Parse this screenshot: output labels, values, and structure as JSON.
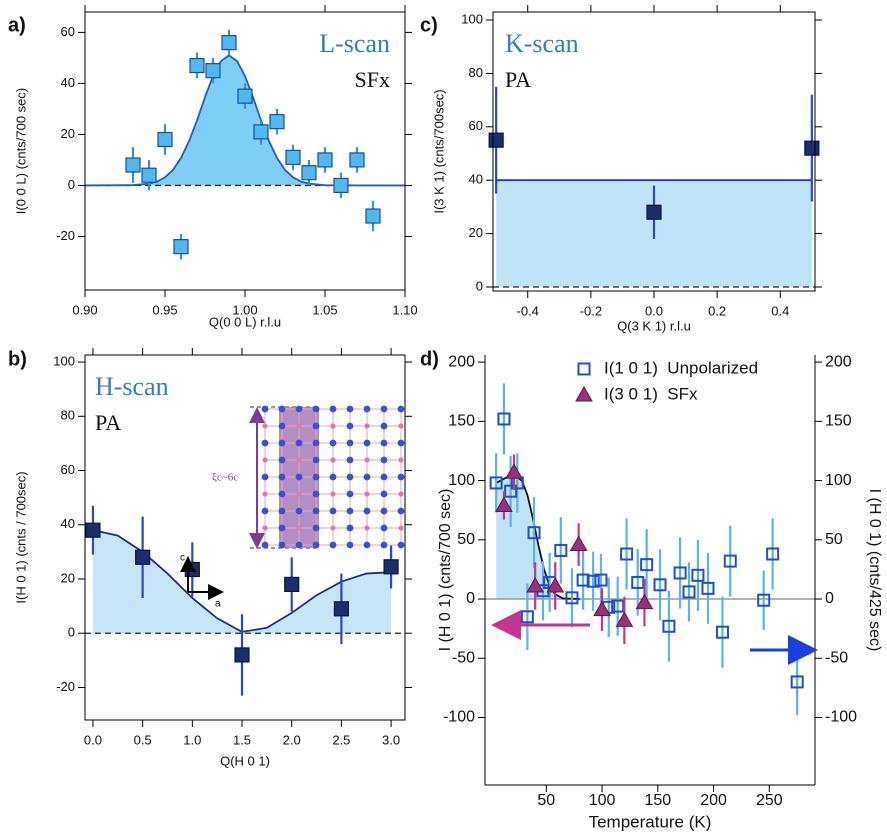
{
  "chart_data": [
    {
      "type": "scatter",
      "panel_label": "a)",
      "title": "L-scan",
      "annotation": "SFx",
      "xlabel": "Q(0 0 L) r.l.u",
      "ylabel": "I(0 0 L) (cnts/700 sec)",
      "xlim": [
        0.9,
        1.1
      ],
      "ylim": [
        -41,
        68
      ],
      "xticks": [
        {
          "value": 0.9,
          "label": "0.90"
        },
        0.95,
        {
          "value": 1,
          "label": "1.00"
        },
        1.05,
        {
          "value": 1.1,
          "label": "1.10"
        }
      ],
      "yticks": [
        -20,
        0,
        20,
        40,
        60
      ],
      "hline": 0,
      "hline_dashed": true,
      "series": [
        {
          "type": "line",
          "color": "#1f5fc0",
          "area_color": "#7fcff5",
          "x": [
            0.9,
            0.93,
            0.94,
            0.945,
            0.95,
            0.955,
            0.96,
            0.965,
            0.97,
            0.975,
            0.98,
            0.985,
            0.99,
            0.995,
            1.0,
            1.005,
            1.01,
            1.015,
            1.02,
            1.025,
            1.03,
            1.035,
            1.04,
            1.05,
            1.07,
            1.1
          ],
          "values": [
            0,
            0.1,
            0.7,
            1.5,
            3.2,
            6.1,
            10.8,
            17.3,
            25.5,
            34.6,
            42.9,
            48.8,
            51,
            48.8,
            42.9,
            34.6,
            25.5,
            17.3,
            10.8,
            6.1,
            3.2,
            1.5,
            0.7,
            0.1,
            0,
            0
          ]
        },
        {
          "type": "scatter",
          "marker": "square",
          "color": "#4fb8ec",
          "edge": "#1b4f9c",
          "error_color": "#3a8fd0",
          "x": [
            0.93,
            0.94,
            0.95,
            0.96,
            0.97,
            0.98,
            0.99,
            1.0,
            1.01,
            1.02,
            1.03,
            1.04,
            1.05,
            1.06,
            1.07,
            1.08
          ],
          "values": [
            8,
            4,
            18,
            -24,
            47,
            45,
            56,
            35,
            21,
            25,
            11,
            5,
            10,
            0,
            10,
            -12
          ],
          "errors": [
            7,
            6,
            6,
            5,
            5,
            5,
            5,
            5,
            5,
            5,
            5,
            5,
            5,
            5,
            5,
            6
          ]
        }
      ]
    },
    {
      "type": "scatter",
      "panel_label": "c)",
      "title": "K-scan",
      "annotation": "PA",
      "xlabel": "Q(3 K 1) r.l.u",
      "ylabel": "I(3 K 1) (cnts/700sec)",
      "xlim": [
        -0.51,
        0.51
      ],
      "ylim": [
        -1.5,
        103
      ],
      "xticks": [
        -0.4,
        -0.2,
        {
          "value": 0,
          "label": "0.0"
        },
        0.2,
        0.4
      ],
      "yticks": [
        0,
        20,
        40,
        60,
        80,
        100
      ],
      "hline": 0,
      "hline_dashed": true,
      "series": [
        {
          "type": "line",
          "color": "#2638a8",
          "area_color": "#bfe4f8",
          "x": [
            -0.5,
            0.5
          ],
          "values": [
            40,
            40
          ]
        },
        {
          "type": "scatter",
          "marker": "square",
          "color": "#1c2d6e",
          "edge": "#0d1640",
          "error_color": "#2a49c0",
          "x": [
            -0.5,
            0,
            0.5
          ],
          "values": [
            55,
            28,
            52
          ],
          "errors": [
            20,
            10,
            20
          ]
        }
      ]
    },
    {
      "type": "scatter",
      "panel_label": "b)",
      "title": "H-scan",
      "annotation": "PA",
      "xlabel": "Q(H 0 1)",
      "ylabel": "I(H 0 1) (cnts / 700sec)",
      "inset_labels": [
        "ξc~6c",
        "c",
        "a"
      ],
      "xlim": [
        -0.08,
        3.14
      ],
      "ylim": [
        -32,
        102.6
      ],
      "xticks": [
        {
          "value": 0,
          "label": "0.0"
        },
        0.5,
        {
          "value": 1,
          "label": "1.0"
        },
        1.5,
        {
          "value": 2,
          "label": "2.0"
        },
        2.5,
        {
          "value": 3,
          "label": "3.0"
        }
      ],
      "yticks": [
        -20,
        0,
        20,
        40,
        60,
        80,
        100
      ],
      "hline": 0,
      "hline_dashed": true,
      "series": [
        {
          "type": "line",
          "color": "#1d2f8a",
          "area_color": "#c6e6f8",
          "x": [
            0,
            0.25,
            0.5,
            0.75,
            1,
            1.25,
            1.5,
            1.75,
            2,
            2.25,
            2.5,
            2.75,
            3
          ],
          "values": [
            38,
            36,
            30,
            22,
            13,
            5.5,
            0.5,
            2,
            7.5,
            14,
            19,
            22,
            22.5
          ]
        },
        {
          "type": "scatter",
          "marker": "square",
          "color": "#1c2d6e",
          "edge": "#0d1640",
          "error_color": "#2a49c0",
          "x": [
            0,
            0.5,
            1,
            1.5,
            2,
            2.5,
            3
          ],
          "values": [
            38,
            28,
            23.5,
            -8,
            18,
            9,
            24.5
          ],
          "errors": [
            9,
            15,
            10,
            15,
            10,
            13,
            8
          ]
        }
      ]
    },
    {
      "type": "scatter",
      "panel_label": "d)",
      "xlabel": "Temperature (K)",
      "ylabel": "I (H 0 1) (cnts/700 sec)",
      "y2label": "I (H 0 1) (cnts/425 sec)",
      "xlim": [
        -5,
        291
      ],
      "ylim": [
        -157,
        206
      ],
      "y2lim": [
        -157,
        206
      ],
      "xticks": [
        50,
        100,
        150,
        200,
        250
      ],
      "yticks": [
        -100,
        -50,
        0,
        50,
        100,
        150,
        200
      ],
      "y2ticks": [
        -100,
        -50,
        0,
        50,
        100,
        150,
        200
      ],
      "hline": 0,
      "hline_dashed": false,
      "legend": "upper right",
      "series": [
        {
          "type": "line",
          "color": "#111111",
          "area_color": "#bfe4f8",
          "x": [
            5,
            15,
            22,
            28,
            33,
            38,
            43,
            48,
            53,
            58,
            65,
            80
          ],
          "values": [
            98,
            103,
            104,
            100,
            88,
            68,
            45,
            25,
            11,
            4,
            0.5,
            0
          ]
        },
        {
          "type": "scatter",
          "name": "I(1 0 1)  Unpolarized",
          "marker": "square",
          "hollow": true,
          "color": "#1f4fc9",
          "error_color": "#5ab4e5",
          "x": [
            5,
            12,
            18,
            24,
            33,
            39,
            47,
            53,
            63,
            73,
            83,
            92,
            99,
            106,
            114,
            122,
            132,
            140,
            152,
            160,
            170,
            178,
            186,
            195,
            208,
            215,
            245,
            253,
            275
          ],
          "values": [
            98,
            152,
            91,
            98,
            -15,
            56,
            7,
            14,
            41,
            1,
            16,
            15,
            16,
            -7,
            -6,
            38,
            14,
            29,
            12,
            -23,
            22,
            6,
            20,
            9,
            -28,
            32,
            -1,
            38,
            -70
          ],
          "errors": [
            25,
            30,
            30,
            25,
            28,
            30,
            25,
            25,
            28,
            25,
            25,
            25,
            22,
            25,
            25,
            30,
            28,
            30,
            30,
            30,
            30,
            25,
            30,
            30,
            30,
            30,
            25,
            30,
            28
          ]
        },
        {
          "type": "scatter",
          "name": "I(3 0 1)  SFx",
          "marker": "triangle",
          "color": "#9c2f7c",
          "error_color": "#c4368e",
          "x": [
            12,
            21,
            40,
            58,
            79,
            100,
            120,
            138
          ],
          "values": [
            79,
            107,
            11,
            11,
            46,
            -9,
            -18,
            -3
          ],
          "errors": [
            12,
            15,
            20,
            20,
            18,
            18,
            20,
            20
          ]
        }
      ]
    }
  ]
}
